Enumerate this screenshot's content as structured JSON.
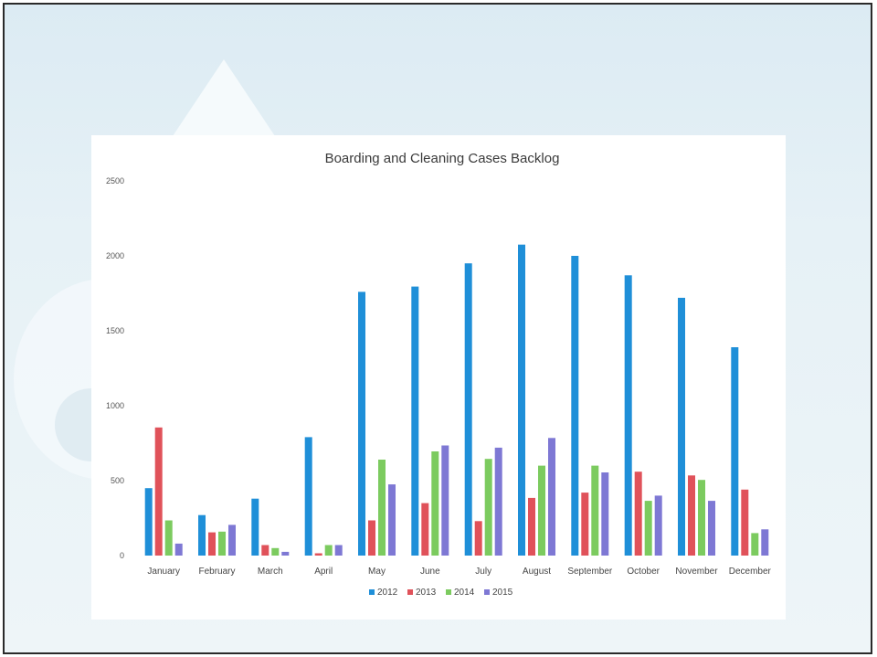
{
  "chart_data": {
    "type": "bar",
    "title": "Boarding and Cleaning Cases Backlog",
    "xlabel": "",
    "ylabel": "",
    "ylim": [
      0,
      2500
    ],
    "yticks": [
      0,
      500,
      1000,
      1500,
      2000,
      2500
    ],
    "grid": false,
    "legend_position": "bottom",
    "categories": [
      "January",
      "February",
      "March",
      "April",
      "May",
      "June",
      "July",
      "August",
      "September",
      "October",
      "November",
      "December"
    ],
    "series": [
      {
        "name": "2012",
        "color": "#1f8fd8",
        "values": [
          450,
          270,
          380,
          790,
          1760,
          1795,
          1950,
          2075,
          2000,
          1870,
          1720,
          1390
        ]
      },
      {
        "name": "2013",
        "color": "#e0525a",
        "values": [
          855,
          155,
          70,
          15,
          235,
          350,
          230,
          385,
          420,
          560,
          535,
          440
        ]
      },
      {
        "name": "2014",
        "color": "#7ccb5f",
        "values": [
          235,
          160,
          50,
          70,
          640,
          695,
          645,
          600,
          600,
          365,
          505,
          150
        ]
      },
      {
        "name": "2015",
        "color": "#7e78d4",
        "values": [
          80,
          205,
          25,
          70,
          475,
          735,
          720,
          785,
          555,
          400,
          365,
          175
        ]
      }
    ]
  }
}
